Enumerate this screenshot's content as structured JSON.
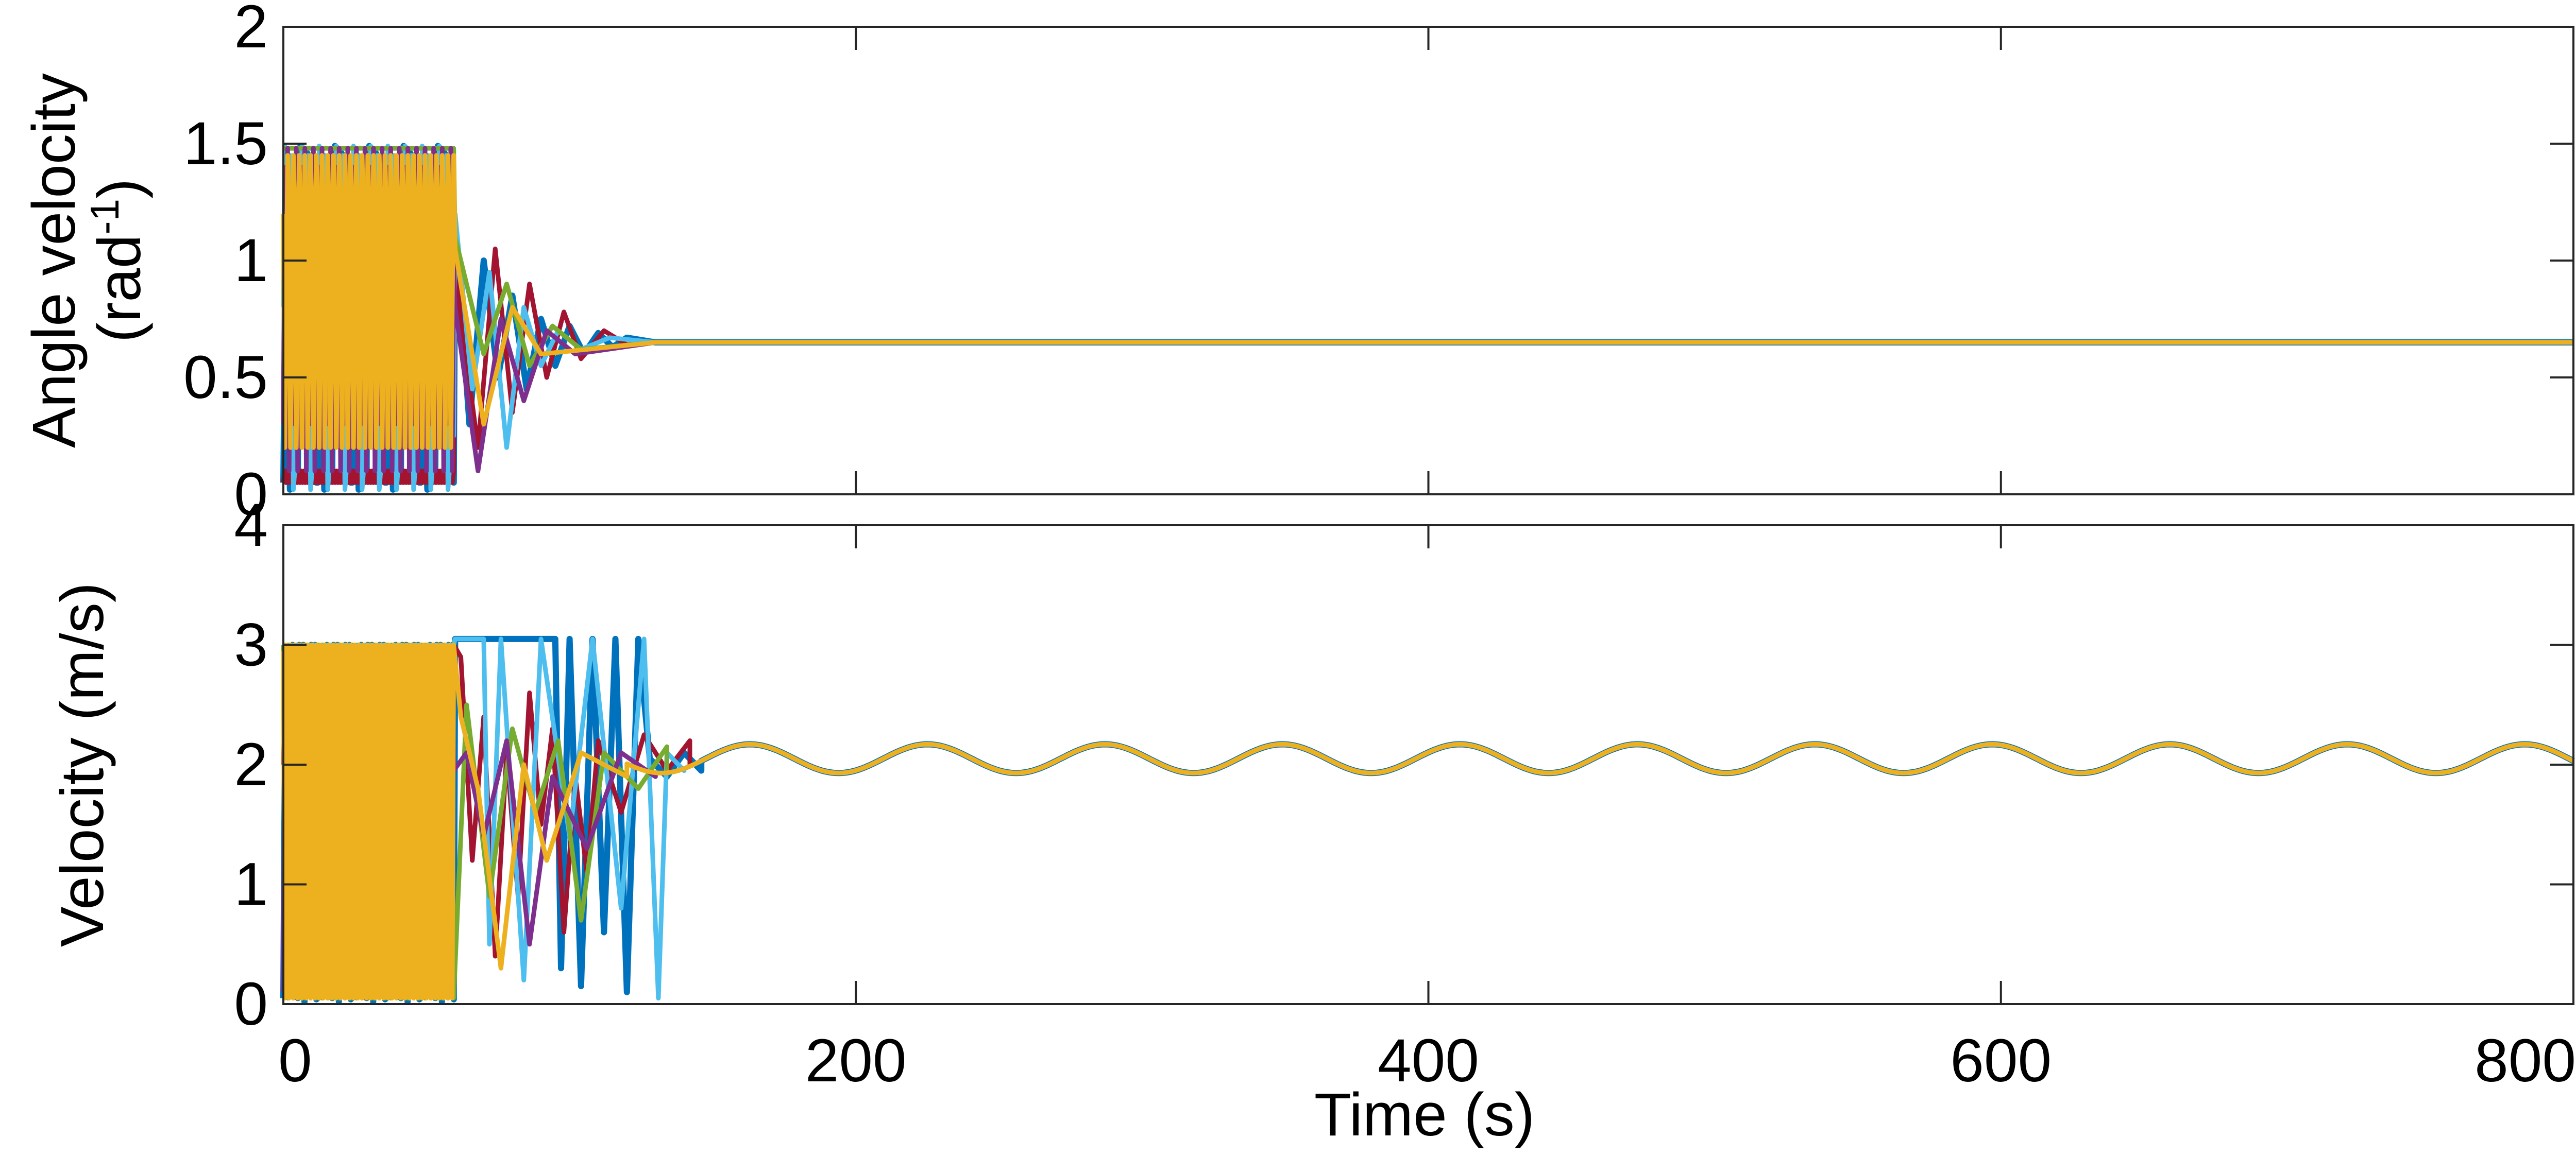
{
  "chart_data": [
    {
      "type": "line",
      "ylabel_line1": "Angle velocity",
      "ylabel_line2_base": "(rad",
      "ylabel_line2_sup": "-1",
      "ylabel_line2_end": ")",
      "xlim": [
        0,
        800
      ],
      "ylim": [
        0,
        2
      ],
      "y_ticks": [
        0,
        0.5,
        1,
        1.5,
        2
      ],
      "y_tick_labels": [
        "0",
        "0.5",
        "1",
        "1.5",
        "2"
      ],
      "x_ticks": [
        0,
        200,
        400,
        600,
        800
      ],
      "grid": false,
      "notes_for_values": "Many overlapping series; random switching 0-1.5 until ~60 s, then converge to ~0.65 by ~130 s.",
      "converged_value": 0.65,
      "chaotic_range": [
        0,
        1.5
      ],
      "chaotic_end_time": 60,
      "settle_time": 130,
      "series": [
        {
          "color": "#0072BD",
          "chaotic_samples": [
            0.05,
            1.48,
            0.2,
            1.45,
            0.9,
            0.1,
            1.3,
            0.6,
            1.47,
            0.02,
            0.8,
            1.1,
            0.3,
            1.49,
            0.5,
            0.95,
            0.15,
            1.4,
            0.7,
            0.05,
            1.25,
            0.4,
            1.46,
            0.25,
            1.0,
            0.1
          ],
          "transition": [
            [
              60,
              1.15
            ],
            [
              65,
              0.3
            ],
            [
              70,
              1.0
            ],
            [
              75,
              0.5
            ],
            [
              80,
              0.85
            ],
            [
              85,
              0.45
            ],
            [
              90,
              0.75
            ],
            [
              95,
              0.55
            ],
            [
              100,
              0.72
            ],
            [
              105,
              0.6
            ],
            [
              110,
              0.69
            ],
            [
              115,
              0.63
            ],
            [
              120,
              0.67
            ],
            [
              130,
              0.65
            ],
            [
              800,
              0.65
            ]
          ]
        },
        {
          "color": "#A2142F",
          "chaotic_samples": [
            1.47,
            0.3,
            1.2,
            0.05,
            1.48,
            0.7,
            0.2,
            1.0,
            0.4,
            1.3,
            0.1,
            0.9,
            1.45,
            0.35
          ],
          "transition": [
            [
              60,
              0.95
            ],
            [
              68,
              0.2
            ],
            [
              74,
              1.05
            ],
            [
              80,
              0.35
            ],
            [
              86,
              0.9
            ],
            [
              92,
              0.5
            ],
            [
              98,
              0.78
            ],
            [
              104,
              0.58
            ],
            [
              112,
              0.7
            ],
            [
              120,
              0.64
            ],
            [
              130,
              0.65
            ],
            [
              800,
              0.65
            ]
          ]
        },
        {
          "color": "#4DBEEE",
          "chaotic_samples": [
            0.6,
            1.49,
            0.1,
            1.2,
            0.4,
            1.45,
            0.8,
            0.02,
            1.35,
            0.55,
            1.1,
            0.25
          ],
          "transition": [
            [
              60,
              1.2
            ],
            [
              66,
              0.45
            ],
            [
              72,
              0.95
            ],
            [
              78,
              0.2
            ],
            [
              84,
              0.8
            ],
            [
              90,
              0.55
            ],
            [
              96,
              0.7
            ],
            [
              104,
              0.62
            ],
            [
              114,
              0.67
            ],
            [
              130,
              0.65
            ],
            [
              800,
              0.65
            ]
          ]
        },
        {
          "color": "#77AC30",
          "chaotic_samples": [
            1.1,
            0.2,
            1.48,
            0.5,
            0.9,
            0.05,
            1.3
          ],
          "transition": [
            [
              60,
              1.1
            ],
            [
              70,
              0.6
            ],
            [
              78,
              0.9
            ],
            [
              86,
              0.55
            ],
            [
              94,
              0.72
            ],
            [
              104,
              0.62
            ],
            [
              130,
              0.65
            ],
            [
              800,
              0.65
            ]
          ]
        },
        {
          "color": "#7E2F8E",
          "chaotic_samples": [
            0.3,
            1.4,
            0.7,
            1.48,
            0.1,
            1.0
          ],
          "transition": [
            [
              60,
              0.8
            ],
            [
              68,
              0.1
            ],
            [
              76,
              0.75
            ],
            [
              84,
              0.4
            ],
            [
              92,
              0.7
            ],
            [
              102,
              0.6
            ],
            [
              130,
              0.65
            ],
            [
              800,
              0.65
            ]
          ]
        },
        {
          "color": "#EDB120",
          "chaotic_samples": [
            1.45,
            0.8,
            0.2,
            1.2
          ],
          "transition": [
            [
              60,
              1.05
            ],
            [
              70,
              0.3
            ],
            [
              80,
              0.8
            ],
            [
              90,
              0.6
            ],
            [
              130,
              0.65
            ],
            [
              800,
              0.65
            ]
          ]
        }
      ]
    },
    {
      "type": "line",
      "ylabel": "Velocity (m/s)",
      "xlabel": "Time (s)",
      "xlim": [
        0,
        800
      ],
      "ylim": [
        0,
        4
      ],
      "y_ticks": [
        0,
        1,
        2,
        3,
        4
      ],
      "y_tick_labels": [
        "0",
        "1",
        "2",
        "3",
        "4"
      ],
      "x_ticks": [
        0,
        200,
        400,
        600,
        800
      ],
      "x_tick_labels": [
        "0",
        "200",
        "400",
        "600",
        "800"
      ],
      "grid": false,
      "notes_for_values": "Many overlapping series; random switching 0-3 until ~60 s, chaotic drops to 0 until ~135 s, then converge to sinusoid centered at 2.05 with amplitude ~0.12 and period ~62 s.",
      "steady_center": 2.05,
      "steady_amplitude": 0.12,
      "steady_period": 62,
      "steady_phase_peak_time": 225,
      "saturation": 3,
      "chaotic_end_time": 60,
      "settle_time": 140,
      "series": [
        {
          "color": "#0072BD",
          "chaotic_samples": [
            0.05,
            3.0,
            1.9,
            0.1,
            2.9,
            0.3,
            3.0,
            1.95,
            0.02,
            2.95,
            0.5,
            1.92,
            3.0,
            0.08,
            2.8,
            1.9,
            0.15,
            3.0,
            2.0,
            0.04,
            2.6,
            1.93,
            0.1,
            3.0,
            1.9,
            0.05
          ],
          "transition": [
            [
              60,
              3.05
            ],
            [
              95,
              3.05
            ],
            [
              97,
              0.3
            ],
            [
              100,
              3.05
            ],
            [
              104,
              0.15
            ],
            [
              108,
              3.05
            ],
            [
              112,
              0.6
            ],
            [
              116,
              3.05
            ],
            [
              120,
              0.1
            ],
            [
              124,
              3.05
            ],
            [
              128,
              2.05
            ],
            [
              134,
              1.9
            ],
            [
              140,
              2.1
            ],
            [
              146,
              1.95
            ]
          ]
        },
        {
          "color": "#A2142F",
          "chaotic_samples": [
            2.9,
            1.95,
            2.6,
            2.0,
            3.0,
            1.9,
            2.75,
            2.05,
            2.95,
            1.92,
            2.5,
            2.1,
            3.0,
            1.95,
            2.8,
            2.0
          ],
          "transition": [
            [
              62,
              2.9
            ],
            [
              66,
              1.2
            ],
            [
              70,
              2.4
            ],
            [
              74,
              0.4
            ],
            [
              78,
              2.1
            ],
            [
              82,
              0.9
            ],
            [
              86,
              2.6
            ],
            [
              90,
              1.5
            ],
            [
              94,
              2.3
            ],
            [
              98,
              0.6
            ],
            [
              102,
              1.9
            ],
            [
              106,
              1.1
            ],
            [
              110,
              2.2
            ],
            [
              118,
              1.6
            ],
            [
              126,
              2.25
            ],
            [
              134,
              1.95
            ],
            [
              142,
              2.2
            ]
          ]
        },
        {
          "color": "#4DBEEE",
          "chaotic_samples": [
            3.0,
            0.1,
            2.95,
            1.9,
            3.0,
            0.2,
            3.0
          ],
          "transition": [
            [
              60,
              3.05
            ],
            [
              70,
              3.05
            ],
            [
              72,
              0.5
            ],
            [
              76,
              3.05
            ],
            [
              84,
              0.2
            ],
            [
              90,
              3.05
            ],
            [
              100,
              1.4
            ],
            [
              108,
              3.05
            ],
            [
              118,
              0.8
            ],
            [
              126,
              3.05
            ],
            [
              131,
              0.05
            ],
            [
              134,
              2.1
            ],
            [
              140,
              1.95
            ]
          ]
        },
        {
          "color": "#77AC30",
          "chaotic_samples": [
            1.9,
            3.0,
            0.05,
            2.0
          ],
          "transition": [
            [
              64,
              2.5
            ],
            [
              72,
              0.9
            ],
            [
              80,
              2.3
            ],
            [
              88,
              1.6
            ],
            [
              96,
              2.2
            ],
            [
              104,
              0.7
            ],
            [
              112,
              2.1
            ],
            [
              124,
              1.8
            ],
            [
              134,
              2.15
            ]
          ]
        },
        {
          "color": "#7E2F8E",
          "chaotic_samples": [
            0.1,
            2.9,
            1.95
          ],
          "transition": [
            [
              64,
              2.1
            ],
            [
              70,
              1.4
            ],
            [
              78,
              2.2
            ],
            [
              86,
              0.5
            ],
            [
              94,
              1.9
            ],
            [
              106,
              1.3
            ],
            [
              118,
              2.1
            ],
            [
              130,
              1.9
            ]
          ]
        },
        {
          "color": "#EDB120",
          "chaotic_samples": [
            2.95,
            0.05,
            3.0
          ],
          "transition": [
            [
              62,
              2.4
            ],
            [
              68,
              1.8
            ],
            [
              76,
              0.3
            ],
            [
              84,
              2.0
            ],
            [
              92,
              1.2
            ],
            [
              104,
              2.1
            ],
            [
              120,
              1.9
            ]
          ]
        }
      ]
    }
  ]
}
